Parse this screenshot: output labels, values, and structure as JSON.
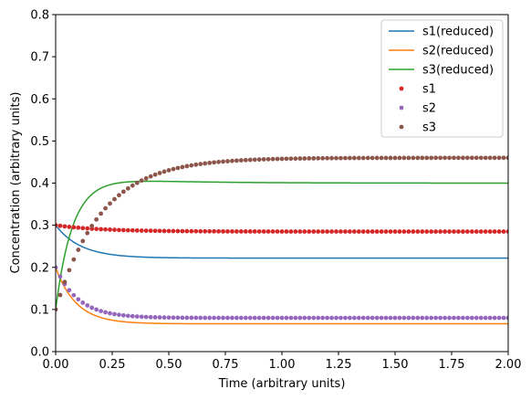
{
  "chart_data": {
    "type": "line",
    "title": "",
    "xlabel": "Time (arbitrary units)",
    "ylabel": "Concentration (arbitrary units)",
    "xlim": [
      0,
      2
    ],
    "ylim": [
      0,
      0.8
    ],
    "xticks": [
      "0.00",
      "0.25",
      "0.50",
      "0.75",
      "1.00",
      "1.25",
      "1.50",
      "1.75",
      "2.00"
    ],
    "yticks": [
      "0.0",
      "0.1",
      "0.2",
      "0.3",
      "0.4",
      "0.5",
      "0.6",
      "0.7",
      "0.8"
    ],
    "grid": false,
    "legend_position": "top-right",
    "series": [
      {
        "name": "s1(reduced)",
        "style": "line",
        "color": "#1f77b4",
        "model": {
          "kind": "decay",
          "start": 0.3,
          "end": 0.222,
          "rate": 9
        }
      },
      {
        "name": "s2(reduced)",
        "style": "line",
        "color": "#ff7f0e",
        "model": {
          "kind": "decay",
          "start": 0.2,
          "end": 0.066,
          "rate": 11
        }
      },
      {
        "name": "s3(reduced)",
        "style": "line",
        "color": "#2ca02c",
        "model": {
          "kind": "overshoot",
          "start": 0.1,
          "end": 0.4,
          "peak": 0.405,
          "rate": 13
        }
      },
      {
        "name": "s1",
        "style": "markers",
        "color": "#d62728",
        "model": {
          "kind": "decay",
          "start": 0.3,
          "end": 0.285,
          "rate": 5
        }
      },
      {
        "name": "s2",
        "style": "markers",
        "color": "#9467bd",
        "model": {
          "kind": "decay",
          "start": 0.2,
          "end": 0.08,
          "rate": 10
        }
      },
      {
        "name": "s3",
        "style": "markers",
        "color": "#8c564b",
        "model": {
          "kind": "rise",
          "start": 0.1,
          "end": 0.46,
          "rate": 5
        }
      }
    ],
    "sample_step": 0.02
  }
}
